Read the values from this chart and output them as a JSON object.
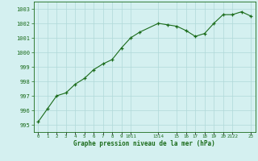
{
  "x": [
    0,
    1,
    2,
    3,
    4,
    5,
    6,
    7,
    8,
    9,
    10,
    11,
    13,
    14,
    15,
    16,
    17,
    18,
    19,
    20,
    21,
    22,
    23
  ],
  "y": [
    995.2,
    996.1,
    997.0,
    997.2,
    997.8,
    998.2,
    998.8,
    999.2,
    999.5,
    1000.3,
    1001.0,
    1001.4,
    1002.0,
    1001.9,
    1001.8,
    1001.5,
    1001.1,
    1001.3,
    1002.0,
    1002.6,
    1002.6,
    1002.8,
    1002.5
  ],
  "yticks": [
    995,
    996,
    997,
    998,
    999,
    1000,
    1001,
    1002,
    1003
  ],
  "ylim": [
    994.5,
    1003.5
  ],
  "xlim": [
    -0.5,
    23.5
  ],
  "xtick_positions": [
    0,
    1,
    2,
    3,
    4,
    5,
    6,
    7,
    8,
    9,
    10,
    13,
    15,
    16,
    17,
    18,
    19,
    20,
    21,
    23
  ],
  "xtick_labels": [
    "0",
    "1",
    "2",
    "3",
    "4",
    "5",
    "6",
    "7",
    "8",
    "9",
    "1011",
    "1314",
    "15",
    "16",
    "17",
    "18",
    "19",
    "20",
    "2122",
    "23"
  ],
  "line_color": "#1a6b1a",
  "bg_color": "#d4f0f0",
  "grid_color": "#b0d8d8",
  "xlabel": "Graphe pression niveau de la mer (hPa)",
  "xlabel_color": "#1a6b1a",
  "tick_color": "#1a6b1a",
  "spine_color": "#1a6b1a"
}
